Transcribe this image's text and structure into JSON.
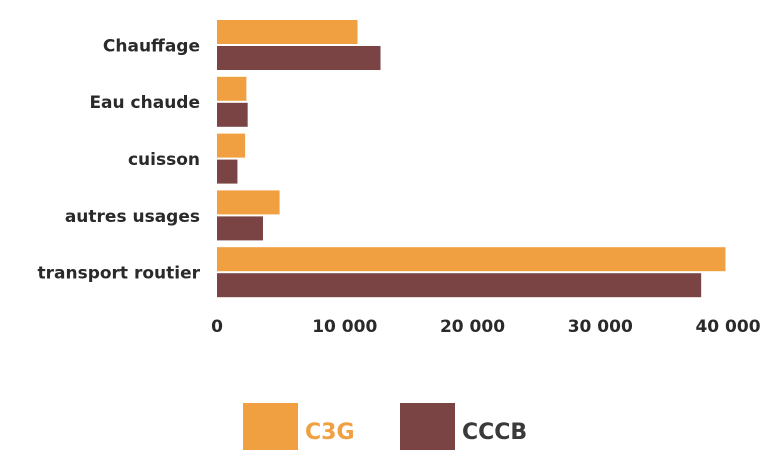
{
  "chart_data": {
    "type": "hbar",
    "categories": [
      "Chauffage",
      "Eau chaude",
      "cuisson",
      "autres usages",
      "transport routier"
    ],
    "series": [
      {
        "name": "C3G",
        "color": "#f0a040",
        "values": [
          11000,
          2300,
          2200,
          4900,
          39800
        ]
      },
      {
        "name": "CCCB",
        "color": "#7a4444",
        "values": [
          12800,
          2400,
          1600,
          3600,
          37900
        ]
      }
    ],
    "xlim": [
      0,
      40000
    ],
    "xticks": [
      0,
      {
        "value": 10000,
        "label": "10 000"
      },
      {
        "value": 20000,
        "label": "20 000"
      },
      {
        "value": 30000,
        "label": "30 000"
      },
      {
        "value": 40000,
        "label": "40 000"
      }
    ],
    "grid": false
  }
}
